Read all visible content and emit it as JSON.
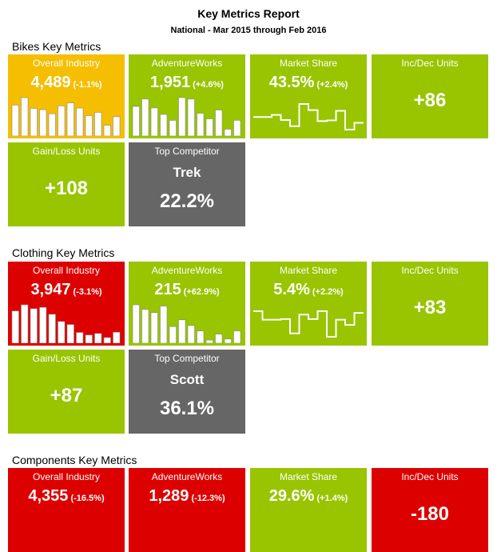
{
  "report": {
    "title": "Key Metrics Report",
    "subtitle": "National - Mar 2015 through Feb 2016"
  },
  "colors": {
    "yellow": "#F5BE00",
    "green": "#99C400",
    "red": "#DD0000",
    "gray": "#666666"
  },
  "sections": [
    {
      "heading": "Bikes Key Metrics",
      "industry": {
        "label": "Overall Industry",
        "value": "4,489",
        "change": "(-1.1%)",
        "color": "yellow",
        "spark": [
          115,
          143,
          103,
          98,
          83,
          112,
          123,
          104,
          76,
          88,
          40,
          72
        ]
      },
      "aw": {
        "label": "AdventureWorks",
        "value": "1,951",
        "change": "(+4.6%)",
        "color": "green",
        "spark": [
          100,
          125,
          95,
          73,
          53,
          130,
          125,
          77,
          58,
          88,
          23,
          53
        ]
      },
      "share": {
        "label": "Market Share",
        "value": "43.5%",
        "change": "(+2.4%)",
        "color": "green",
        "spark": [
          42,
          42,
          48,
          33,
          15,
          80,
          62,
          30,
          32,
          60,
          5,
          25
        ]
      },
      "incdec": {
        "label": "Inc/Dec Units",
        "value": "+86",
        "color": "green"
      },
      "gainloss": {
        "label": "Gain/Loss Units",
        "value": "+108",
        "color": "green"
      },
      "competitor": {
        "label": "Top Competitor",
        "name": "Trek",
        "value": "22.2%",
        "color": "gray"
      }
    },
    {
      "heading": "Clothing Key Metrics",
      "industry": {
        "label": "Overall Industry",
        "value": "3,947",
        "change": "(-3.1%)",
        "color": "red",
        "spark": [
          126,
          150,
          135,
          140,
          113,
          85,
          73,
          42,
          32,
          38,
          22,
          43
        ]
      },
      "aw": {
        "label": "AdventureWorks",
        "value": "215",
        "change": "(+62.9%)",
        "color": "green",
        "spark": [
          148,
          130,
          118,
          143,
          64,
          90,
          68,
          47,
          12,
          35,
          16,
          47
        ]
      },
      "share": {
        "label": "Market Share",
        "value": "5.4%",
        "change": "(+2.2%)",
        "color": "green",
        "spark": [
          85,
          60,
          60,
          62,
          20,
          75,
          62,
          85,
          10,
          60,
          45,
          80
        ]
      },
      "incdec": {
        "label": "Inc/Dec Units",
        "value": "+83",
        "color": "green"
      },
      "gainloss": {
        "label": "Gain/Loss Units",
        "value": "+87",
        "color": "green"
      },
      "competitor": {
        "label": "Top Competitor",
        "name": "Scott",
        "value": "36.1%",
        "color": "gray"
      }
    },
    {
      "heading": "Components Key Metrics",
      "industry": {
        "label": "Overall Industry",
        "value": "4,355",
        "change": "(-16.5%)",
        "color": "red"
      },
      "aw": {
        "label": "AdventureWorks",
        "value": "1,289",
        "change": "(-12.3%)",
        "color": "red"
      },
      "share": {
        "label": "Market Share",
        "value": "29.6%",
        "change": "(+1.4%)",
        "color": "green"
      },
      "incdec": {
        "label": "Inc/Dec Units",
        "value": "-180",
        "color": "red"
      }
    }
  ]
}
